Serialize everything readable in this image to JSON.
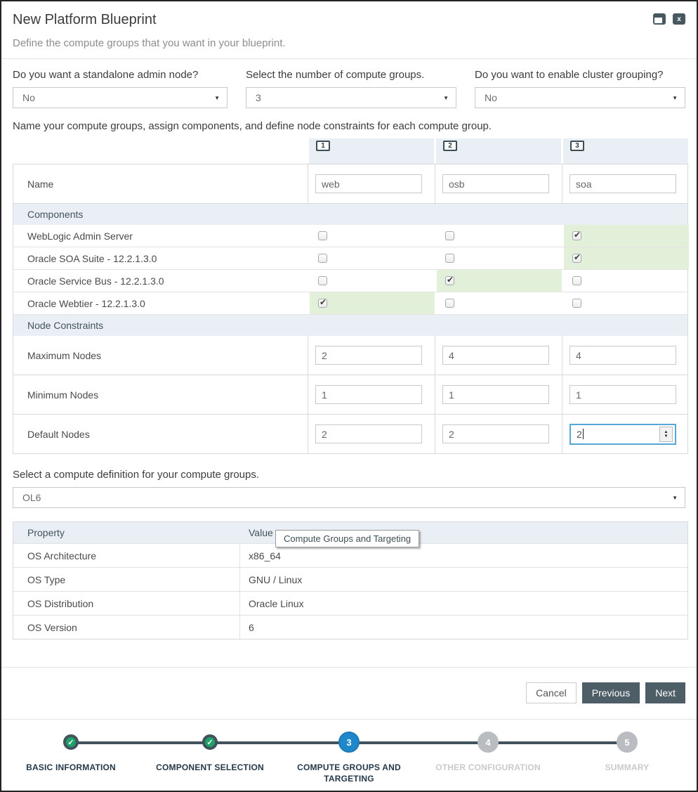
{
  "header": {
    "title": "New Platform Blueprint",
    "subtitle": "Define the compute groups that you want in your blueprint.",
    "close_glyph": "x"
  },
  "questions": [
    {
      "label": "Do you want a standalone admin node?",
      "value": "No"
    },
    {
      "label": "Select the number of compute groups.",
      "value": "3"
    },
    {
      "label": "Do you want to enable cluster grouping?",
      "value": "No"
    }
  ],
  "intro": "Name your compute groups, assign components, and define node constraints for each compute group.",
  "groups": {
    "numbers": [
      "1",
      "2",
      "3"
    ],
    "name_label": "Name",
    "names": [
      "web",
      "osb",
      "soa"
    ]
  },
  "components": {
    "section_label": "Components",
    "rows": [
      {
        "label": "WebLogic Admin Server",
        "checked": [
          false,
          false,
          true
        ]
      },
      {
        "label": "Oracle SOA Suite - 12.2.1.3.0",
        "checked": [
          false,
          false,
          true
        ]
      },
      {
        "label": "Oracle Service Bus - 12.2.1.3.0",
        "checked": [
          false,
          true,
          false
        ]
      },
      {
        "label": "Oracle Webtier - 12.2.1.3.0",
        "checked": [
          true,
          false,
          false
        ]
      }
    ]
  },
  "node_constraints": {
    "section_label": "Node Constraints",
    "rows": [
      {
        "label": "Maximum Nodes",
        "values": [
          "2",
          "4",
          "4"
        ]
      },
      {
        "label": "Minimum Nodes",
        "values": [
          "1",
          "1",
          "1"
        ]
      },
      {
        "label": "Default Nodes",
        "values": [
          "2",
          "2",
          "2"
        ]
      }
    ]
  },
  "compute_definition": {
    "label": "Select a compute definition for your compute groups.",
    "value": "OL6"
  },
  "properties": {
    "headers": [
      "Property",
      "Value"
    ],
    "rows": [
      {
        "property": "OS Architecture",
        "value": "x86_64"
      },
      {
        "property": "OS Type",
        "value": "GNU / Linux"
      },
      {
        "property": "OS Distribution",
        "value": "Oracle Linux"
      },
      {
        "property": "OS Version",
        "value": "6"
      }
    ]
  },
  "tooltip": "Compute Groups and Targeting",
  "buttons": {
    "cancel": "Cancel",
    "previous": "Previous",
    "next": "Next"
  },
  "wizard": {
    "steps": [
      {
        "label": "BASIC INFORMATION",
        "state": "complete",
        "glyph": "✓"
      },
      {
        "label": "COMPONENT SELECTION",
        "state": "complete",
        "glyph": "✓"
      },
      {
        "label": "COMPUTE GROUPS AND TARGETING",
        "state": "active",
        "glyph": "3"
      },
      {
        "label": "OTHER CONFIGURATION",
        "state": "upcoming",
        "glyph": "4"
      },
      {
        "label": "SUMMARY",
        "state": "upcoming",
        "glyph": "5"
      }
    ]
  },
  "colors": {
    "section_header_bg": "#e9eff4",
    "checked_cell_bg": "#e2efd9",
    "dark_button_bg": "#4d5e66",
    "active_step_blue": "#1e88cb",
    "complete_step_green": "#1fa26a",
    "focus_border_blue": "#58a6d8"
  }
}
